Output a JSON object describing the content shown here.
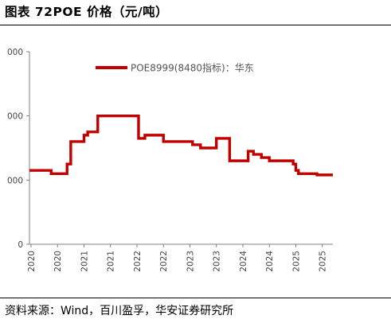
{
  "header": {
    "title": "图表 72POE 价格（元/吨）"
  },
  "footer": {
    "source": "资料来源：Wind，百川盈孚，华安证券研究所"
  },
  "chart_data": {
    "type": "line",
    "title": "图表 72POE 价格（元/吨）",
    "xlabel": "",
    "ylabel": "",
    "x_tick_labels": [
      "2020",
      "2020",
      "2021",
      "2021",
      "2022",
      "2022",
      "2023",
      "2023",
      "2024",
      "2024",
      "2025",
      "2025"
    ],
    "x_tick_values": [
      2020.0,
      2020.5,
      2021.0,
      2021.5,
      2022.0,
      2022.5,
      2023.0,
      2023.5,
      2024.0,
      2024.5,
      2025.0,
      2025.5
    ],
    "xlim": [
      2019.97,
      2025.7
    ],
    "y_tick_labels": [
      "0",
      "000",
      "000",
      "000"
    ],
    "y_tick_values": [
      0,
      10000,
      20000,
      30000
    ],
    "ylim": [
      0,
      30000
    ],
    "legend_position": "top",
    "grid": false,
    "series": [
      {
        "name": "POE8999(8480指标)：华东",
        "color": "#c00000",
        "step": true,
        "x": [
          2019.97,
          2020.2,
          2020.38,
          2020.55,
          2020.68,
          2020.75,
          2020.95,
          2021.0,
          2021.07,
          2021.13,
          2021.26,
          2021.65,
          2022.0,
          2022.03,
          2022.1,
          2022.15,
          2022.3,
          2022.45,
          2022.5,
          2022.8,
          2022.83,
          2023.0,
          2023.05,
          2023.2,
          2023.3,
          2023.5,
          2023.65,
          2023.75,
          2023.95,
          2024.0,
          2024.05,
          2024.1,
          2024.2,
          2024.35,
          2024.5,
          2024.55,
          2024.65,
          2024.8,
          2024.95,
          2025.0,
          2025.05,
          2025.1,
          2025.3,
          2025.4,
          2025.5,
          2025.7
        ],
        "values": [
          11500,
          11500,
          11000,
          11000,
          12500,
          16000,
          16000,
          17000,
          17500,
          17500,
          20000,
          20000,
          20000,
          16500,
          16500,
          17000,
          17000,
          17000,
          16000,
          16000,
          16000,
          16000,
          15500,
          15000,
          15000,
          16500,
          16500,
          13000,
          13000,
          13000,
          13000,
          14500,
          14000,
          13500,
          13000,
          13000,
          13000,
          13000,
          12500,
          11500,
          11000,
          11000,
          11000,
          10800,
          10800,
          10800
        ]
      }
    ]
  }
}
